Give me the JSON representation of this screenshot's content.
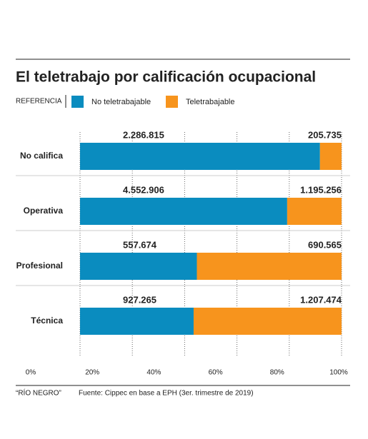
{
  "chart_data": {
    "type": "bar100h",
    "title": "El teletrabajo por calificación ocupacional",
    "legend_title": "REFERENCIA",
    "categories": [
      "No califica",
      "Operativa",
      "Profesional",
      "Técnica"
    ],
    "series": [
      {
        "name": "No teletrabajable",
        "color": "#0a8cbf",
        "values": [
          2286815,
          4552906,
          557674,
          927265
        ],
        "value_labels": [
          "2.286.815",
          "4.552.906",
          "557.674",
          "927.265"
        ]
      },
      {
        "name": "Teletrabajable",
        "color": "#f7941d",
        "values": [
          205735,
          1195256,
          690565,
          1207474
        ],
        "value_labels": [
          "205.735",
          "1.195.256",
          "690.565",
          "1.207.474"
        ]
      }
    ],
    "xlim": [
      0,
      100
    ],
    "xticks": [
      {
        "value": 0,
        "label": "0%"
      },
      {
        "value": 20,
        "label": "20%"
      },
      {
        "value": 40,
        "label": "40%"
      },
      {
        "value": 60,
        "label": "60%"
      },
      {
        "value": 80,
        "label": "80%"
      },
      {
        "value": 100,
        "label": "100%"
      }
    ],
    "grid": true,
    "credit": "“RÍO NEGRO”",
    "source": "Fuente: Cippec en base a EPH (3er. trimestre de 2019)"
  }
}
